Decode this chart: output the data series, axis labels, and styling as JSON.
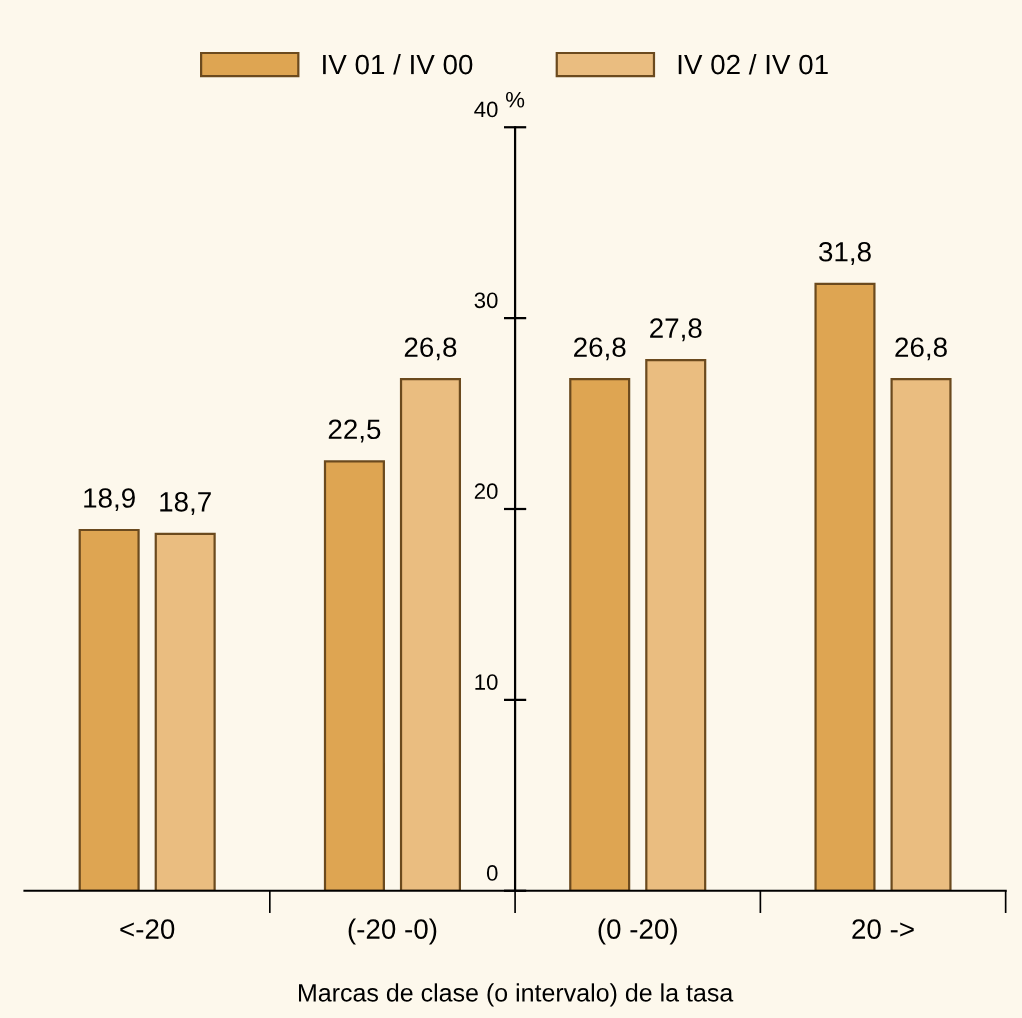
{
  "chart_data": {
    "type": "bar",
    "xlabel": "Marcas de clase (o intervalo) de la tasa",
    "ylabel": "%",
    "categories": [
      "<-20",
      "(-20 -0)",
      "(0 -20)",
      "20 ->"
    ],
    "series": [
      {
        "name": "IV 01 / IV 00",
        "color": "#dea552",
        "values": [
          18.9,
          22.5,
          26.8,
          31.8
        ],
        "value_labels": [
          "18,9",
          "22,5",
          "26,8",
          "31,8"
        ]
      },
      {
        "name": "IV 02 / IV 01",
        "color": "#eabd80",
        "values": [
          18.7,
          26.8,
          27.8,
          26.8
        ],
        "value_labels": [
          "18,7",
          "26,8",
          "27,8",
          "26,8"
        ]
      }
    ],
    "ylim": [
      0,
      40
    ],
    "yticks": [
      0,
      10,
      20,
      30,
      40
    ],
    "grid": false,
    "legend": "top"
  }
}
